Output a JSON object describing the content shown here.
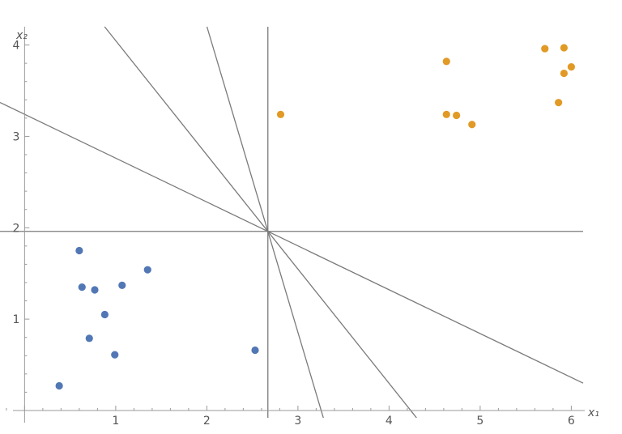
{
  "chart_data": {
    "type": "scatter",
    "xlabel": "x₁",
    "ylabel": "x₂",
    "xlim": [
      -0.27,
      6.13
    ],
    "ylim": [
      -0.08,
      4.2
    ],
    "grid": false,
    "x_ticks": [
      "1",
      "2",
      "3",
      "4",
      "5",
      "6"
    ],
    "y_ticks": [
      "1",
      "2",
      "3",
      "4"
    ],
    "series": [
      {
        "color": "#5277b5",
        "points": [
          [
            0.38,
            0.27
          ],
          [
            0.6,
            1.75
          ],
          [
            0.63,
            1.35
          ],
          [
            0.77,
            1.32
          ],
          [
            0.88,
            1.05
          ],
          [
            0.71,
            0.79
          ],
          [
            0.99,
            0.61
          ],
          [
            1.07,
            1.37
          ],
          [
            1.35,
            1.54
          ],
          [
            2.53,
            0.66
          ]
        ]
      },
      {
        "color": "#e19a25",
        "points": [
          [
            2.81,
            3.24
          ],
          [
            4.63,
            3.82
          ],
          [
            4.63,
            3.24
          ],
          [
            4.74,
            3.23
          ],
          [
            4.91,
            3.13
          ],
          [
            5.71,
            3.96
          ],
          [
            5.92,
            3.97
          ],
          [
            6.0,
            3.76
          ],
          [
            5.92,
            3.69
          ],
          [
            5.86,
            3.37
          ]
        ]
      }
    ],
    "lines": {
      "color": "#7a7a7a",
      "through_point": [
        2.67,
        1.96
      ],
      "slopes": [
        "vertical",
        0,
        -0.48,
        -1.25,
        -3.35
      ]
    }
  }
}
